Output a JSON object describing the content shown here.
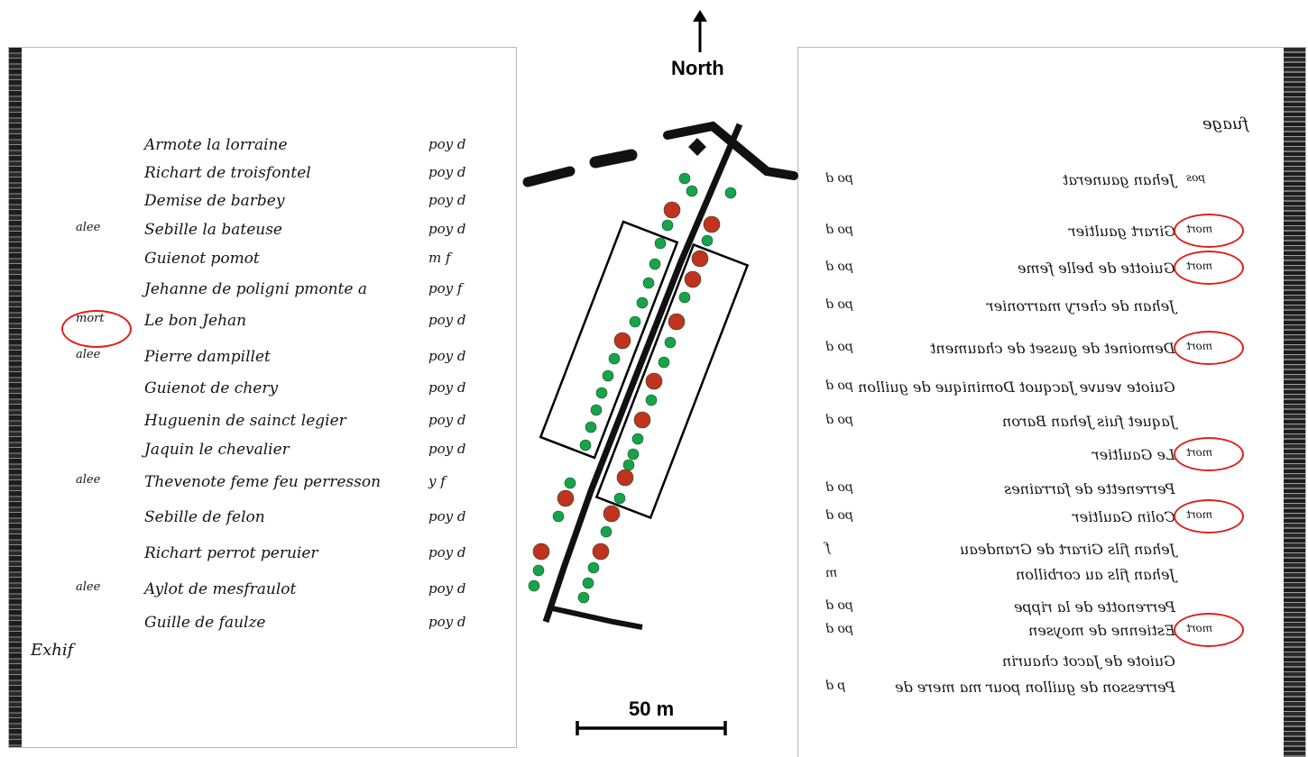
{
  "map": {
    "north_label": "North",
    "scale_label": "50 m",
    "colors": {
      "marker_red": "#c0331f",
      "marker_green": "#17a34a",
      "circle_red": "#e0201d"
    }
  },
  "left_register": {
    "entries": [
      {
        "name": "Armote la lorraine",
        "amount": "poy d",
        "mark": ""
      },
      {
        "name": "Richart de troisfontel",
        "amount": "poy d",
        "mark": ""
      },
      {
        "name": "Demise de barbey",
        "amount": "poy d",
        "mark": ""
      },
      {
        "name": "Sebille la bateuse",
        "amount": "poy d",
        "mark": "alee"
      },
      {
        "name": "Guienot pomot",
        "amount": "m f",
        "mark": ""
      },
      {
        "name": "Jehanne de poligni pmonte a",
        "amount": "poy f",
        "mark": ""
      },
      {
        "name": "Le bon Jehan",
        "amount": "poy d",
        "mark": "mort",
        "circled": true
      },
      {
        "name": "Pierre dampillet",
        "amount": "poy d",
        "mark": "alee"
      },
      {
        "name": "Guienot de chery",
        "amount": "poy d",
        "mark": ""
      },
      {
        "name": "Huguenin de sainct legier",
        "amount": "poy d",
        "mark": ""
      },
      {
        "name": "Jaquin le chevalier",
        "amount": "poy d",
        "mark": ""
      },
      {
        "name": "Thevenote feme feu perresson",
        "amount": "y f",
        "mark": "alee"
      },
      {
        "name": "Sebille de felon",
        "amount": "poy d",
        "mark": ""
      },
      {
        "name": "Richart perrot peruier",
        "amount": "poy d",
        "mark": ""
      },
      {
        "name": "Aylot de mesfraulot",
        "amount": "poy d",
        "mark": "alee"
      },
      {
        "name": "Guille de faulze",
        "amount": "poy d",
        "mark": ""
      }
    ],
    "corner_note": "Exhif"
  },
  "right_register": {
    "header": "fuage",
    "entries": [
      {
        "name": "Jehan gaunerat",
        "amount": "po d",
        "mark": "pos"
      },
      {
        "name": "Girart gaultier",
        "amount": "po d",
        "mark": "mort",
        "circled": true
      },
      {
        "name": "Guiotte de belle feme",
        "amount": "po d",
        "mark": "mort",
        "circled": true
      },
      {
        "name": "Jehan de chery marronier",
        "amount": "po d",
        "mark": ""
      },
      {
        "name": "Demoinet de gusset de chaument",
        "amount": "po d",
        "mark": "mort",
        "circled": true
      },
      {
        "name": "Guiote veuve Jacquot Dominique de guillon",
        "amount": "po d",
        "mark": ""
      },
      {
        "name": "Jaquet fuis Jehan Baron",
        "amount": "po d",
        "mark": ""
      },
      {
        "name": "Le Gaultier",
        "amount": "",
        "mark": "mort",
        "circled": true
      },
      {
        "name": "Perrenette de farraines",
        "amount": "po d",
        "mark": ""
      },
      {
        "name": "Colin Gaultier",
        "amount": "po d",
        "mark": "mort",
        "circled": true
      },
      {
        "name": "Jehan fils Girart de Grandeau",
        "amount": "f",
        "mark": ""
      },
      {
        "name": "Jehan fils au corbillon",
        "amount": "m",
        "mark": ""
      },
      {
        "name": "Perrenotte de la rippe",
        "amount": "po d",
        "mark": ""
      },
      {
        "name": "Estienne de moysen",
        "amount": "po d",
        "mark": "mort",
        "circled": true
      },
      {
        "name": "Guiote de Jacot chaurin",
        "amount": "",
        "mark": ""
      },
      {
        "name": "Perresson de guillon pour ma mere de",
        "amount": "p d",
        "mark": ""
      }
    ]
  }
}
